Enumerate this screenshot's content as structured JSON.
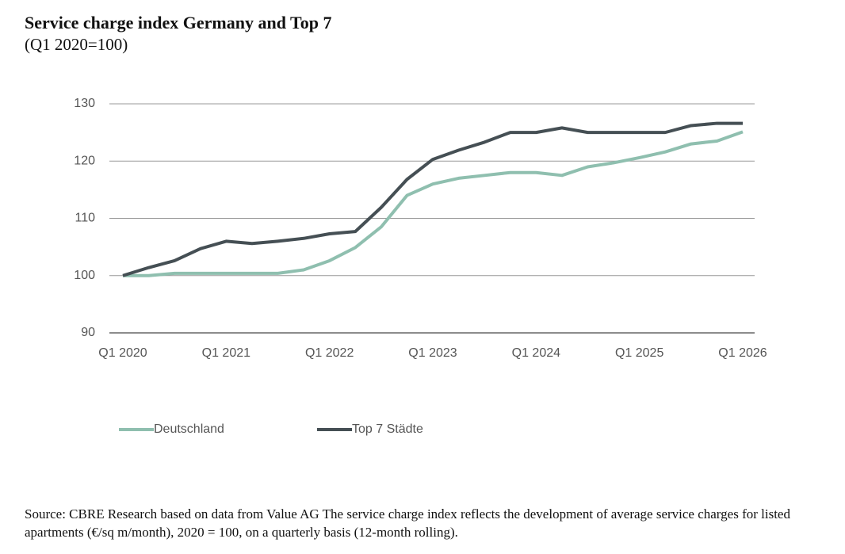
{
  "chart_data": {
    "type": "line",
    "title": "Service charge index Germany and Top 7",
    "subtitle": "(Q1 2020=100)",
    "categories": [
      "Q1 2020",
      null,
      null,
      null,
      "Q1 2021",
      null,
      null,
      null,
      "Q1 2022",
      null,
      null,
      null,
      "Q1 2023",
      null,
      null,
      null,
      "Q1 2024",
      null,
      null,
      null,
      "Q1 2025",
      null,
      null,
      null,
      "Q1 2026"
    ],
    "series": [
      {
        "name": "Deutschland",
        "color": "#8fbfaf",
        "values": [
          100,
          100,
          100.4,
          100.4,
          100.4,
          100.4,
          100.4,
          101.0,
          102.6,
          104.9,
          108.5,
          114.0,
          116.0,
          117.0,
          117.5,
          118.0,
          118.0,
          117.5,
          119.0,
          119.7,
          120.6,
          121.6,
          123.0,
          123.5,
          125.1
        ]
      },
      {
        "name": "Top 7 Städte",
        "color": "#454f54",
        "values": [
          100,
          101.4,
          102.6,
          104.7,
          106.0,
          105.6,
          106.0,
          106.5,
          107.3,
          107.7,
          111.9,
          116.8,
          120.3,
          121.9,
          123.3,
          125.0,
          125.0,
          125.8,
          125.0,
          125.0,
          125.0,
          125.0,
          126.2,
          126.6,
          126.6
        ]
      }
    ],
    "ylim": [
      90,
      130
    ],
    "yticks": [
      90,
      100,
      110,
      120,
      130
    ],
    "grid": true,
    "source": "Source: CBRE Research based on data from Value AG The service charge index reflects the development of average service charges for listed apartments (€/sq m/month), 2020 = 100, on a quarterly basis (12-month rolling)."
  }
}
